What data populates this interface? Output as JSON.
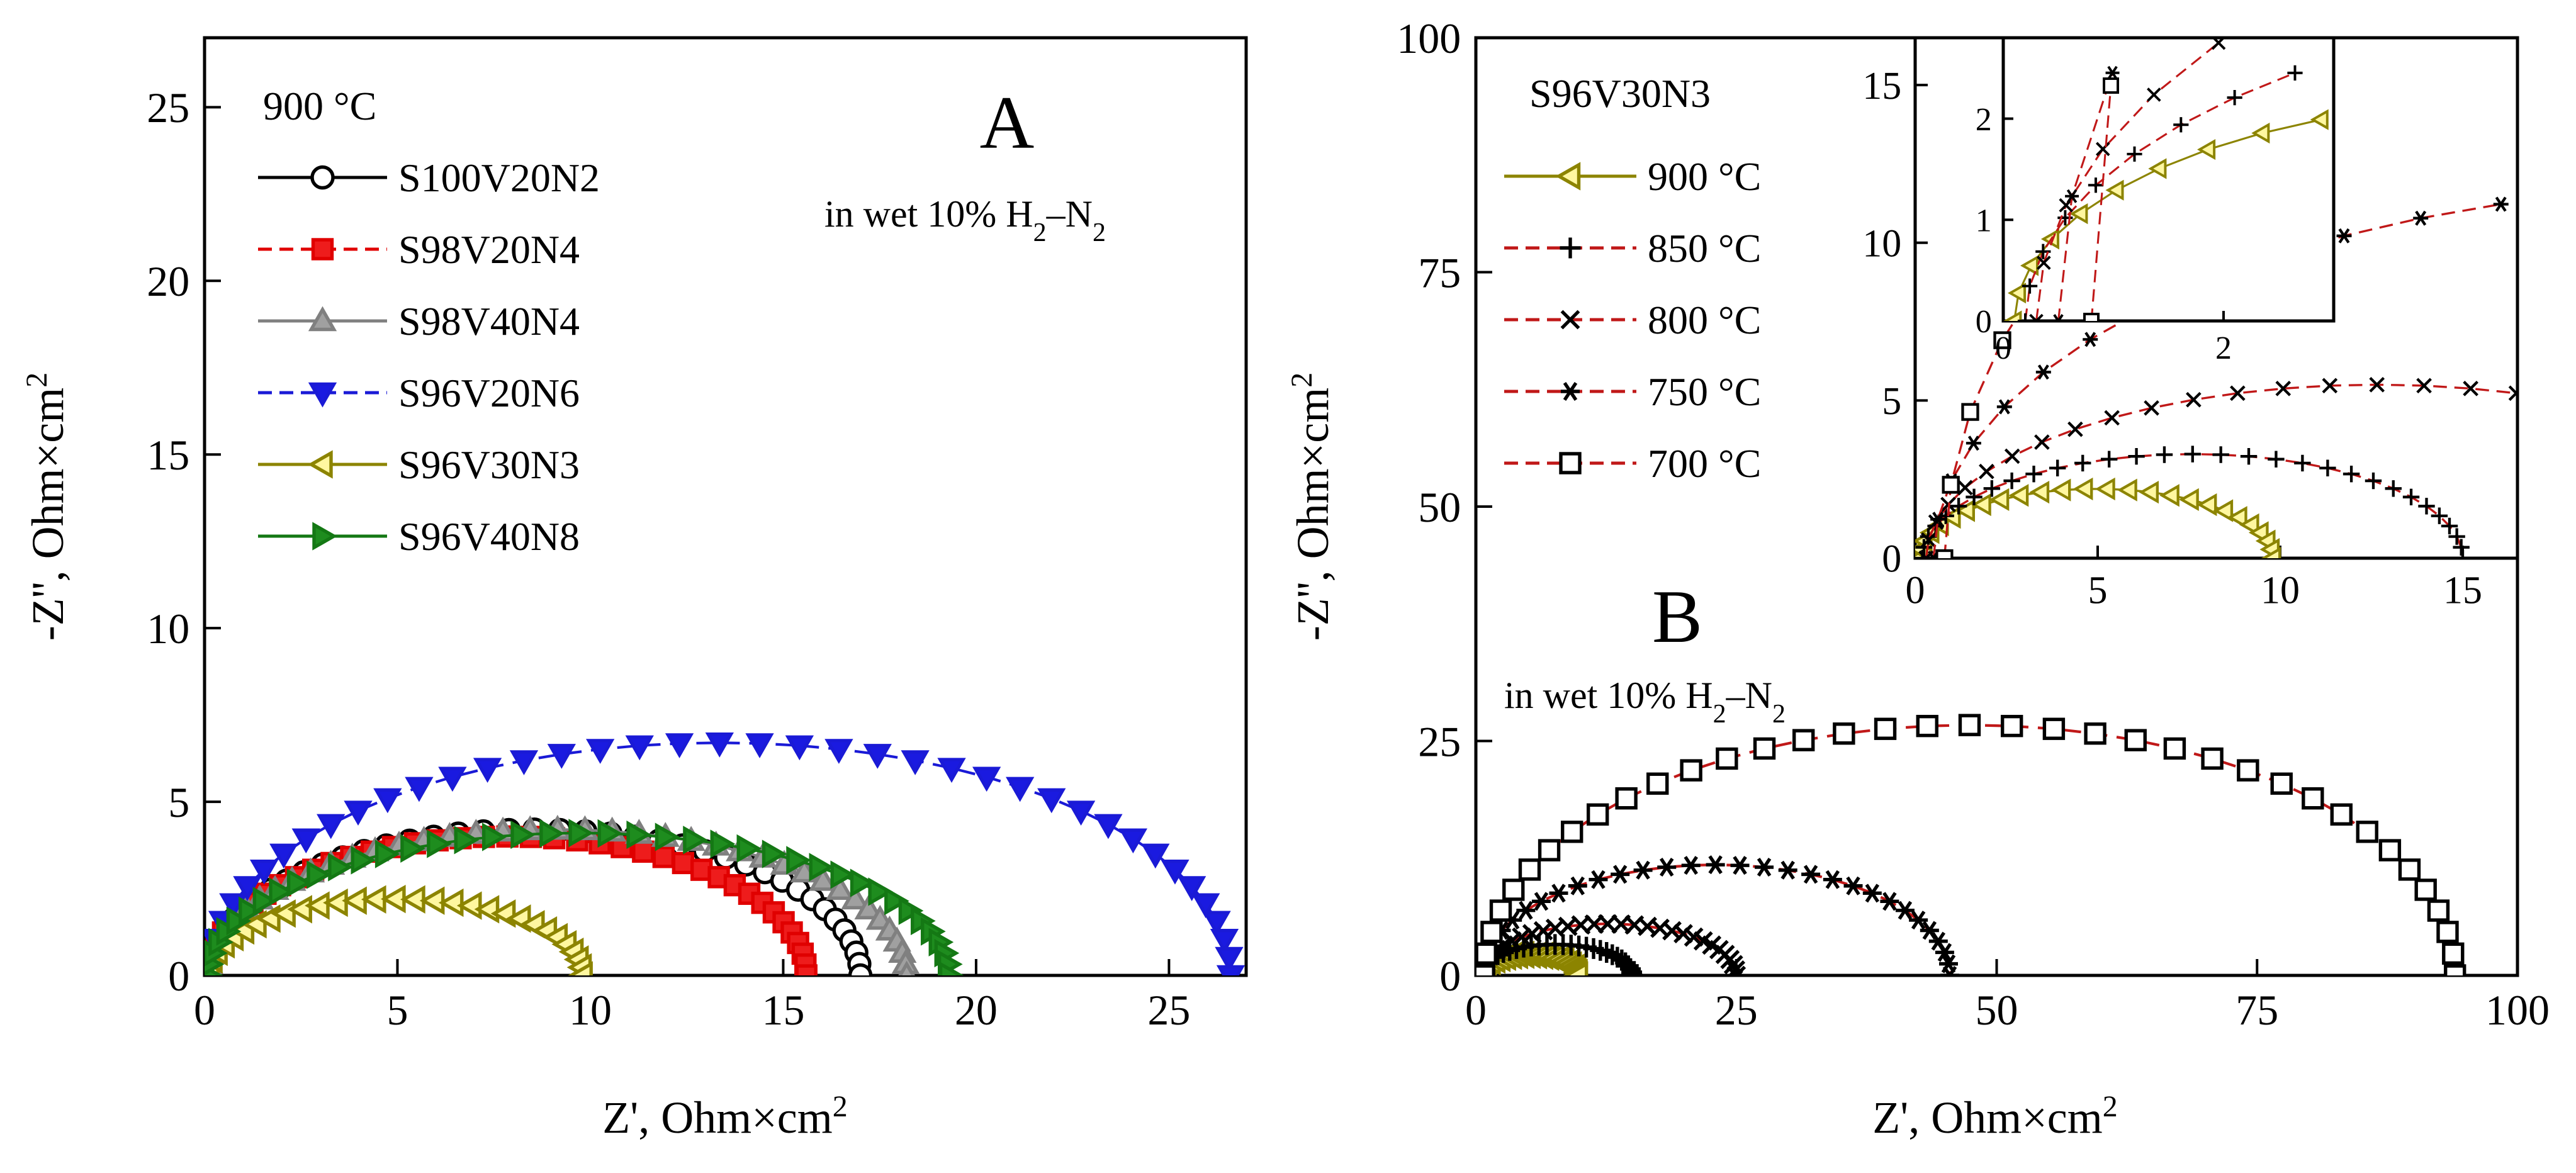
{
  "figure": {
    "panels": [
      "A",
      "B"
    ]
  },
  "chart_data": [
    {
      "id": "A",
      "type": "scatter",
      "panel_label": "A",
      "condition_label": "in wet 10% H2–N2",
      "legend_title": "900 °C",
      "xlabel": "Z', Ohm×cm2",
      "ylabel": "-Z'', Ohm×cm2",
      "xlim": [
        0,
        27
      ],
      "ylim": [
        0,
        27
      ],
      "xticks": [
        0,
        5,
        10,
        15,
        20,
        25
      ],
      "yticks": [
        0,
        5,
        10,
        15,
        20,
        25
      ],
      "legend_position": "top-left",
      "series": [
        {
          "name": "S100V20N2",
          "color": "#000000",
          "marker": "circle",
          "fill": "#ffffff",
          "line": "solid",
          "arc": {
            "start": 0.1,
            "end": 17.0,
            "peak": 4.2,
            "npts": 40
          }
        },
        {
          "name": "S98V20N4",
          "color": "#e00000",
          "marker": "square",
          "fill": "#ee1c1c",
          "line": "dashed",
          "arc": {
            "start": 0.1,
            "end": 15.6,
            "peak": 4.0,
            "npts": 40
          }
        },
        {
          "name": "S98V40N4",
          "color": "#808080",
          "marker": "triangle-up",
          "fill": "#a0a0a0",
          "line": "solid",
          "arc": {
            "start": 0.1,
            "end": 18.2,
            "peak": 4.2,
            "npts": 40
          }
        },
        {
          "name": "S96V20N6",
          "color": "#1a1ad6",
          "marker": "triangle-down",
          "fill": "#1a1ae0",
          "line": "dashed",
          "arc": {
            "start": 0.1,
            "end": 26.6,
            "peak": 6.7,
            "npts": 40
          }
        },
        {
          "name": "S96V30N3",
          "color": "#8c8400",
          "marker": "triangle-left",
          "fill": "#fff7a0",
          "line": "solid",
          "arc": {
            "start": 0.1,
            "end": 9.8,
            "peak": 2.2,
            "npts": 30
          }
        },
        {
          "name": "S96V40N8",
          "color": "#147814",
          "marker": "triangle-right",
          "fill": "#1e8c1e",
          "line": "solid",
          "arc": {
            "start": 0.1,
            "end": 19.3,
            "peak": 4.1,
            "npts": 40
          }
        }
      ]
    },
    {
      "id": "B",
      "type": "scatter",
      "panel_label": "B",
      "condition_label": "in wet 10% H2–N2",
      "legend_title": "S96V30N3",
      "xlabel": "Z', Ohm×cm2",
      "ylabel": "-Z'', Ohm×cm2",
      "xlim": [
        0,
        100
      ],
      "ylim": [
        0,
        100
      ],
      "xticks": [
        0,
        25,
        50,
        75,
        100
      ],
      "yticks": [
        0,
        25,
        50,
        75,
        100
      ],
      "legend_position": "top-left",
      "series": [
        {
          "name": "900 °C",
          "color": "#8c8400",
          "marker": "triangle-left",
          "fill": "#fff7a0",
          "line": "solid",
          "arc": {
            "start": 0.1,
            "end": 9.8,
            "peak": 2.2,
            "npts": 25
          }
        },
        {
          "name": "850 °C",
          "color": "#c01818",
          "marker": "plus",
          "fill": "none",
          "line": "dashed",
          "arc": {
            "start": 0.2,
            "end": 15.0,
            "peak": 3.3,
            "npts": 30
          }
        },
        {
          "name": "800 °C",
          "color": "#c01818",
          "marker": "cross",
          "fill": "none",
          "line": "dashed",
          "arc": {
            "start": 0.3,
            "end": 25.0,
            "peak": 5.5,
            "npts": 30
          }
        },
        {
          "name": "750 °C",
          "color": "#c01818",
          "marker": "asterisk",
          "fill": "none",
          "line": "dashed",
          "arc": {
            "start": 0.5,
            "end": 45.5,
            "peak": 11.8,
            "npts": 30
          }
        },
        {
          "name": "700 °C",
          "color": "#c01818",
          "marker": "square",
          "fill": "#ffffff",
          "line": "dashed",
          "arc": {
            "start": 0.8,
            "end": 94.0,
            "peak": 26.7,
            "npts": 36
          }
        }
      ]
    },
    {
      "id": "B-inset1",
      "type": "scatter",
      "xlim": [
        0,
        16.5
      ],
      "ylim": [
        0,
        16.5
      ],
      "xticks": [
        0,
        5,
        10,
        15
      ],
      "yticks": [
        0,
        5,
        10,
        15
      ],
      "series_ref": "B"
    },
    {
      "id": "B-inset2",
      "type": "scatter",
      "xlim": [
        0,
        3.0
      ],
      "ylim": [
        0,
        2.8
      ],
      "xticks": [
        0,
        2
      ],
      "yticks": [
        0,
        1,
        2
      ],
      "series_ref": "B"
    }
  ]
}
